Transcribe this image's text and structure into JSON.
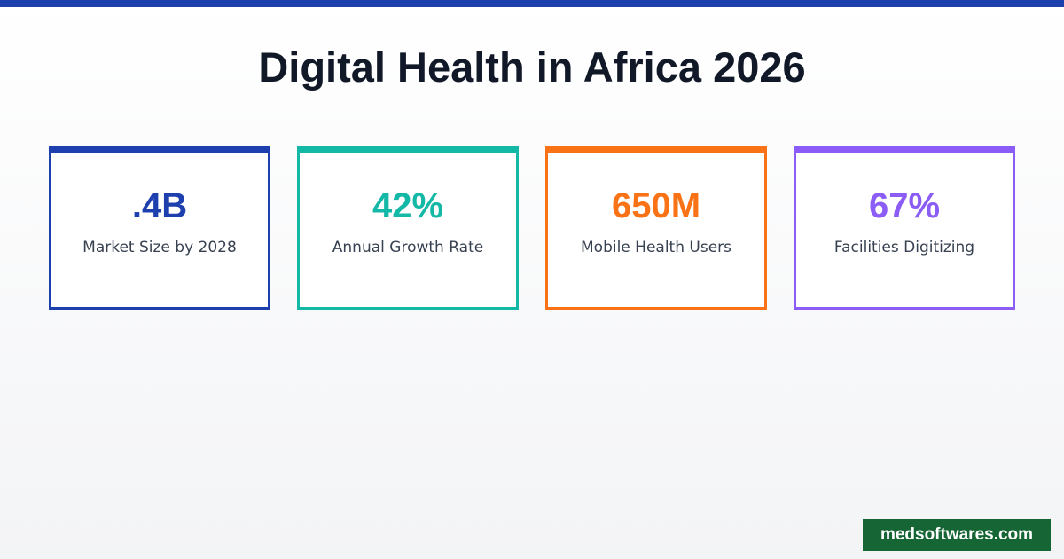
{
  "header": {
    "title": "Digital Health in Africa 2026"
  },
  "cards": [
    {
      "value": ".4B",
      "label": "Market Size by 2028",
      "color": "#1e40af"
    },
    {
      "value": "42%",
      "label": "Annual Growth Rate",
      "color": "#14b8a6"
    },
    {
      "value": "650M",
      "label": "Mobile Health Users",
      "color": "#f97316"
    },
    {
      "value": "67%",
      "label": "Facilities Digitizing",
      "color": "#8b5cf6"
    }
  ],
  "footer": {
    "brand": "medsoftwares.com"
  }
}
